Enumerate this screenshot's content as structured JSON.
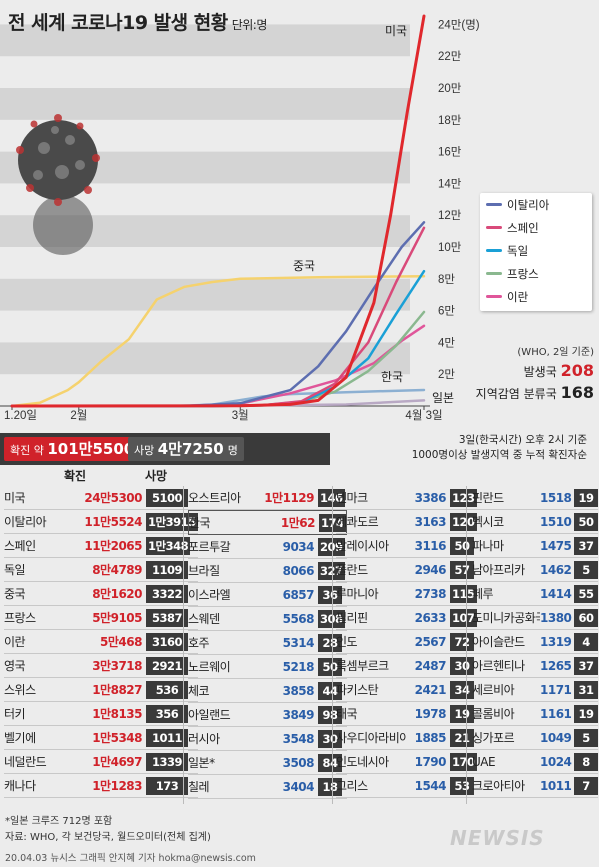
{
  "title": "전 세계 코로나19 발생 현황",
  "unit_label": "단위:명",
  "colors": {
    "us": "#e0282d",
    "china": "#f5d26e",
    "italy": "#5d6eb0",
    "spain": "#d94a7a",
    "germany": "#1aa0d6",
    "france": "#8ab88f",
    "iran": "#e0569a",
    "korea": "#8cb0d2",
    "japan": "#b9a9c4",
    "red": "#d0222a",
    "dark": "#3a3a3a"
  },
  "chart_data": {
    "type": "line",
    "xlabel": "",
    "ylabel": "",
    "x_ticks": [
      "1.20일",
      "2월",
      "3월",
      "4월 3일"
    ],
    "y_ticks": [
      "2만",
      "4만",
      "6만",
      "8만",
      "10만",
      "12만",
      "14만",
      "16만",
      "18만",
      "20만",
      "22만",
      "24만(명)"
    ],
    "y_tick_values": [
      20000,
      40000,
      60000,
      80000,
      100000,
      120000,
      140000,
      160000,
      180000,
      200000,
      220000,
      240000
    ],
    "ylim": [
      0,
      245300
    ],
    "x_range": [
      "2020-01-20",
      "2020-04-03"
    ],
    "series": [
      {
        "name": "미국",
        "label": "미국",
        "color": "#e0282d",
        "x": [
          "2020-01-20",
          "2020-03-01",
          "2020-03-10",
          "2020-03-15",
          "2020-03-20",
          "2020-03-25",
          "2020-03-28",
          "2020-03-31",
          "2020-04-03"
        ],
        "values": [
          0,
          100,
          1000,
          3500,
          18000,
          65000,
          120000,
          185000,
          245300
        ]
      },
      {
        "name": "중국",
        "label": "중국",
        "color": "#f5d26e",
        "x": [
          "2020-01-20",
          "2020-01-25",
          "2020-01-30",
          "2020-02-01",
          "2020-02-05",
          "2020-02-10",
          "2020-02-15",
          "2020-02-20",
          "2020-02-25",
          "2020-03-01",
          "2020-03-15",
          "2020-04-03"
        ],
        "values": [
          0,
          2000,
          10000,
          15000,
          28000,
          42000,
          67000,
          75000,
          78000,
          80000,
          81000,
          81620
        ]
      },
      {
        "name": "이탈리아",
        "color": "#5d6eb0",
        "x": [
          "2020-01-20",
          "2020-02-20",
          "2020-03-01",
          "2020-03-10",
          "2020-03-15",
          "2020-03-20",
          "2020-03-25",
          "2020-03-30",
          "2020-04-03"
        ],
        "values": [
          0,
          0,
          1700,
          10000,
          25000,
          47000,
          74000,
          100000,
          115524
        ]
      },
      {
        "name": "스페인",
        "color": "#d94a7a",
        "x": [
          "2020-01-20",
          "2020-02-25",
          "2020-03-05",
          "2020-03-12",
          "2020-03-18",
          "2020-03-24",
          "2020-03-29",
          "2020-04-03"
        ],
        "values": [
          0,
          0,
          500,
          3000,
          14000,
          40000,
          78000,
          112065
        ]
      },
      {
        "name": "독일",
        "color": "#1aa0d6",
        "x": [
          "2020-01-20",
          "2020-02-25",
          "2020-03-05",
          "2020-03-12",
          "2020-03-18",
          "2020-03-24",
          "2020-03-29",
          "2020-04-03"
        ],
        "values": [
          0,
          0,
          500,
          2500,
          12000,
          30000,
          58000,
          84789
        ]
      },
      {
        "name": "프랑스",
        "color": "#8ab88f",
        "x": [
          "2020-01-20",
          "2020-02-25",
          "2020-03-05",
          "2020-03-12",
          "2020-03-18",
          "2020-03-24",
          "2020-03-29",
          "2020-04-03"
        ],
        "values": [
          0,
          0,
          400,
          2800,
          9000,
          22000,
          38000,
          59105
        ]
      },
      {
        "name": "이란",
        "color": "#e0569a",
        "x": [
          "2020-01-20",
          "2020-02-20",
          "2020-03-01",
          "2020-03-10",
          "2020-03-18",
          "2020-03-25",
          "2020-03-30",
          "2020-04-03"
        ],
        "values": [
          0,
          0,
          1500,
          8000,
          16000,
          27000,
          41000,
          50468
        ]
      },
      {
        "name": "한국",
        "label": "한국",
        "color": "#8cb0d2",
        "x": [
          "2020-01-20",
          "2020-02-18",
          "2020-02-25",
          "2020-03-01",
          "2020-03-05",
          "2020-03-10",
          "2020-03-20",
          "2020-04-03"
        ],
        "values": [
          0,
          30,
          900,
          3700,
          6000,
          7500,
          8700,
          10062
        ]
      },
      {
        "name": "일본",
        "label": "일본",
        "color": "#b9a9c4",
        "x": [
          "2020-01-20",
          "2020-03-01",
          "2020-03-20",
          "2020-04-03"
        ],
        "values": [
          0,
          250,
          950,
          3508
        ]
      }
    ]
  },
  "who": {
    "note": "(WHO, 2일 기준)",
    "countries_label": "발생국",
    "countries_value": "208",
    "local_label": "지역감염 분류국",
    "local_value": "168"
  },
  "summary": {
    "confirmed_label": "확진 약",
    "confirmed_value": "101만5500",
    "deaths_label": "사망",
    "deaths_value": "4만7250",
    "deaths_unit": "명",
    "note_line1": "3일(한국시간) 오후 2시 기준",
    "note_line2": "1000명이상 발생지역 중 누적 확진자순"
  },
  "table_headers": {
    "confirmed": "확진",
    "deaths": "사망"
  },
  "columns": [
    [
      {
        "name": "미국",
        "confirmed": "24만5300",
        "deaths": "5100"
      },
      {
        "name": "이탈리아",
        "confirmed": "11만5524",
        "deaths": "1만3915"
      },
      {
        "name": "스페인",
        "confirmed": "11만2065",
        "deaths": "1만348"
      },
      {
        "name": "독일",
        "confirmed": "8만4789",
        "deaths": "1109"
      },
      {
        "name": "중국",
        "confirmed": "8만1620",
        "deaths": "3322"
      },
      {
        "name": "프랑스",
        "confirmed": "5만9105",
        "deaths": "5387"
      },
      {
        "name": "이란",
        "confirmed": "5만468",
        "deaths": "3160"
      },
      {
        "name": "영국",
        "confirmed": "3만3718",
        "deaths": "2921"
      },
      {
        "name": "스위스",
        "confirmed": "1만8827",
        "deaths": "536"
      },
      {
        "name": "터키",
        "confirmed": "1만8135",
        "deaths": "356"
      },
      {
        "name": "벨기에",
        "confirmed": "1만5348",
        "deaths": "1011"
      },
      {
        "name": "네덜란드",
        "confirmed": "1만4697",
        "deaths": "1339"
      },
      {
        "name": "캐나다",
        "confirmed": "1만1283",
        "deaths": "173"
      }
    ],
    [
      {
        "name": "오스트리아",
        "confirmed": "1만1129",
        "deaths": "146"
      },
      {
        "name": "한국",
        "confirmed": "1만62",
        "deaths": "174"
      },
      {
        "name": "포르투갈",
        "confirmed": "9034",
        "deaths": "209"
      },
      {
        "name": "브라질",
        "confirmed": "8066",
        "deaths": "327"
      },
      {
        "name": "이스라엘",
        "confirmed": "6857",
        "deaths": "36"
      },
      {
        "name": "스웨덴",
        "confirmed": "5568",
        "deaths": "308"
      },
      {
        "name": "호주",
        "confirmed": "5314",
        "deaths": "28"
      },
      {
        "name": "노르웨이",
        "confirmed": "5218",
        "deaths": "50"
      },
      {
        "name": "체코",
        "confirmed": "3858",
        "deaths": "44"
      },
      {
        "name": "아일랜드",
        "confirmed": "3849",
        "deaths": "98"
      },
      {
        "name": "러시아",
        "confirmed": "3548",
        "deaths": "30"
      },
      {
        "name": "일본*",
        "confirmed": "3508",
        "deaths": "84"
      },
      {
        "name": "칠레",
        "confirmed": "3404",
        "deaths": "18"
      }
    ],
    [
      {
        "name": "덴마크",
        "confirmed": "3386",
        "deaths": "123"
      },
      {
        "name": "에콰도르",
        "confirmed": "3163",
        "deaths": "120"
      },
      {
        "name": "말레이시아",
        "confirmed": "3116",
        "deaths": "50"
      },
      {
        "name": "폴란드",
        "confirmed": "2946",
        "deaths": "57"
      },
      {
        "name": "루마니아",
        "confirmed": "2738",
        "deaths": "115"
      },
      {
        "name": "필리핀",
        "confirmed": "2633",
        "deaths": "107"
      },
      {
        "name": "인도",
        "confirmed": "2567",
        "deaths": "72"
      },
      {
        "name": "룩셈부르크",
        "confirmed": "2487",
        "deaths": "30"
      },
      {
        "name": "파키스탄",
        "confirmed": "2421",
        "deaths": "34"
      },
      {
        "name": "태국",
        "confirmed": "1978",
        "deaths": "19"
      },
      {
        "name": "사우디아라비아",
        "confirmed": "1885",
        "deaths": "21"
      },
      {
        "name": "인도네시아",
        "confirmed": "1790",
        "deaths": "170"
      },
      {
        "name": "그리스",
        "confirmed": "1544",
        "deaths": "53"
      }
    ],
    [
      {
        "name": "핀란드",
        "confirmed": "1518",
        "deaths": "19"
      },
      {
        "name": "멕시코",
        "confirmed": "1510",
        "deaths": "50"
      },
      {
        "name": "파나마",
        "confirmed": "1475",
        "deaths": "37"
      },
      {
        "name": "남아프리카",
        "confirmed": "1462",
        "deaths": "5"
      },
      {
        "name": "페루",
        "confirmed": "1414",
        "deaths": "55"
      },
      {
        "name": "도미니카공화국",
        "confirmed": "1380",
        "deaths": "60"
      },
      {
        "name": "아이슬란드",
        "confirmed": "1319",
        "deaths": "4"
      },
      {
        "name": "아르헨티나",
        "confirmed": "1265",
        "deaths": "37"
      },
      {
        "name": "세르비아",
        "confirmed": "1171",
        "deaths": "31"
      },
      {
        "name": "콜롬비아",
        "confirmed": "1161",
        "deaths": "19"
      },
      {
        "name": "싱가포르",
        "confirmed": "1049",
        "deaths": "5"
      },
      {
        "name": "UAE",
        "confirmed": "1024",
        "deaths": "8"
      },
      {
        "name": "크로아티아",
        "confirmed": "1011",
        "deaths": "7"
      }
    ]
  ],
  "footer": {
    "cruise_note": "*일본 크루즈 712명 포함",
    "source": "자료: WHO, 각 보건당국, 월드오미터(전체 집계)",
    "credit": "20.04.03 뉴시스 그래픽 안지혜 기자 hokma@newsis.com",
    "watermark": "NEWSIS"
  }
}
